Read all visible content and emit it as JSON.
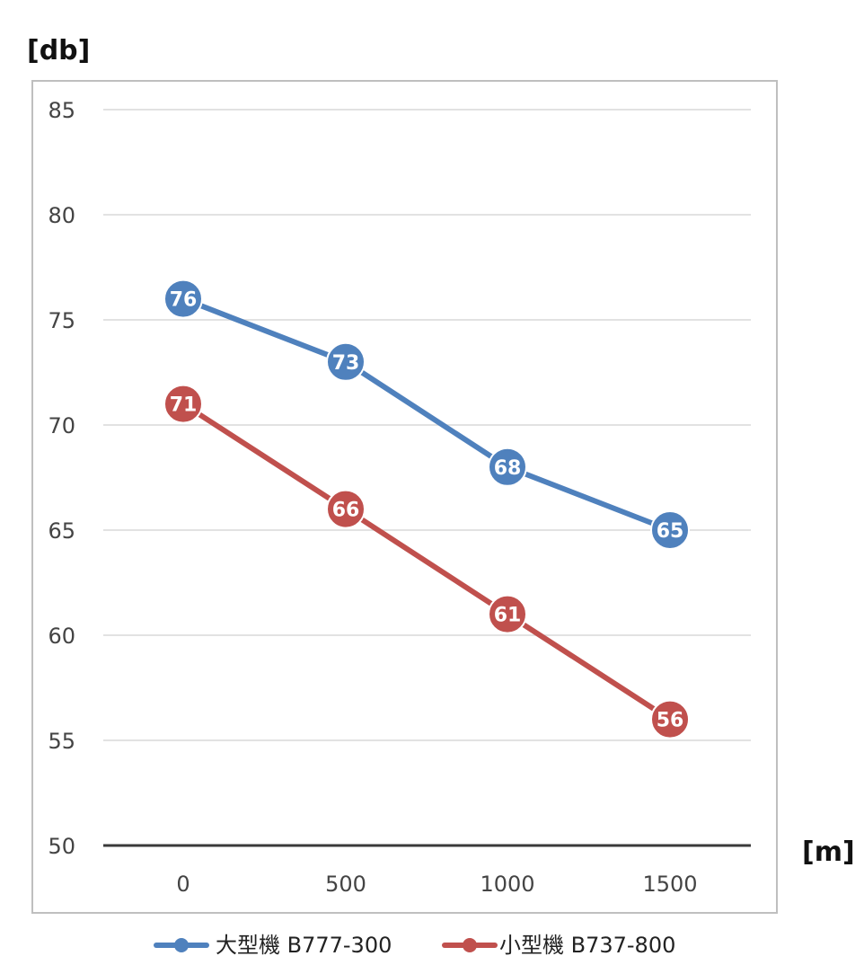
{
  "chart_data": {
    "type": "line",
    "title": "",
    "xlabel": "[m]",
    "ylabel": "[db]",
    "x": [
      "0",
      "500",
      "1000",
      "1500"
    ],
    "ylim": [
      50,
      85
    ],
    "yticks": [
      "50",
      "55",
      "60",
      "65",
      "70",
      "75",
      "80",
      "85"
    ],
    "grid": true,
    "legend_position": "bottom",
    "series": [
      {
        "name": "大型機 B777-300",
        "values": [
          76,
          73,
          68,
          65
        ],
        "color": "#4f81bd"
      },
      {
        "name": "小型機 B737-800",
        "values": [
          71,
          66,
          61,
          56
        ],
        "color": "#c0504d"
      }
    ]
  }
}
